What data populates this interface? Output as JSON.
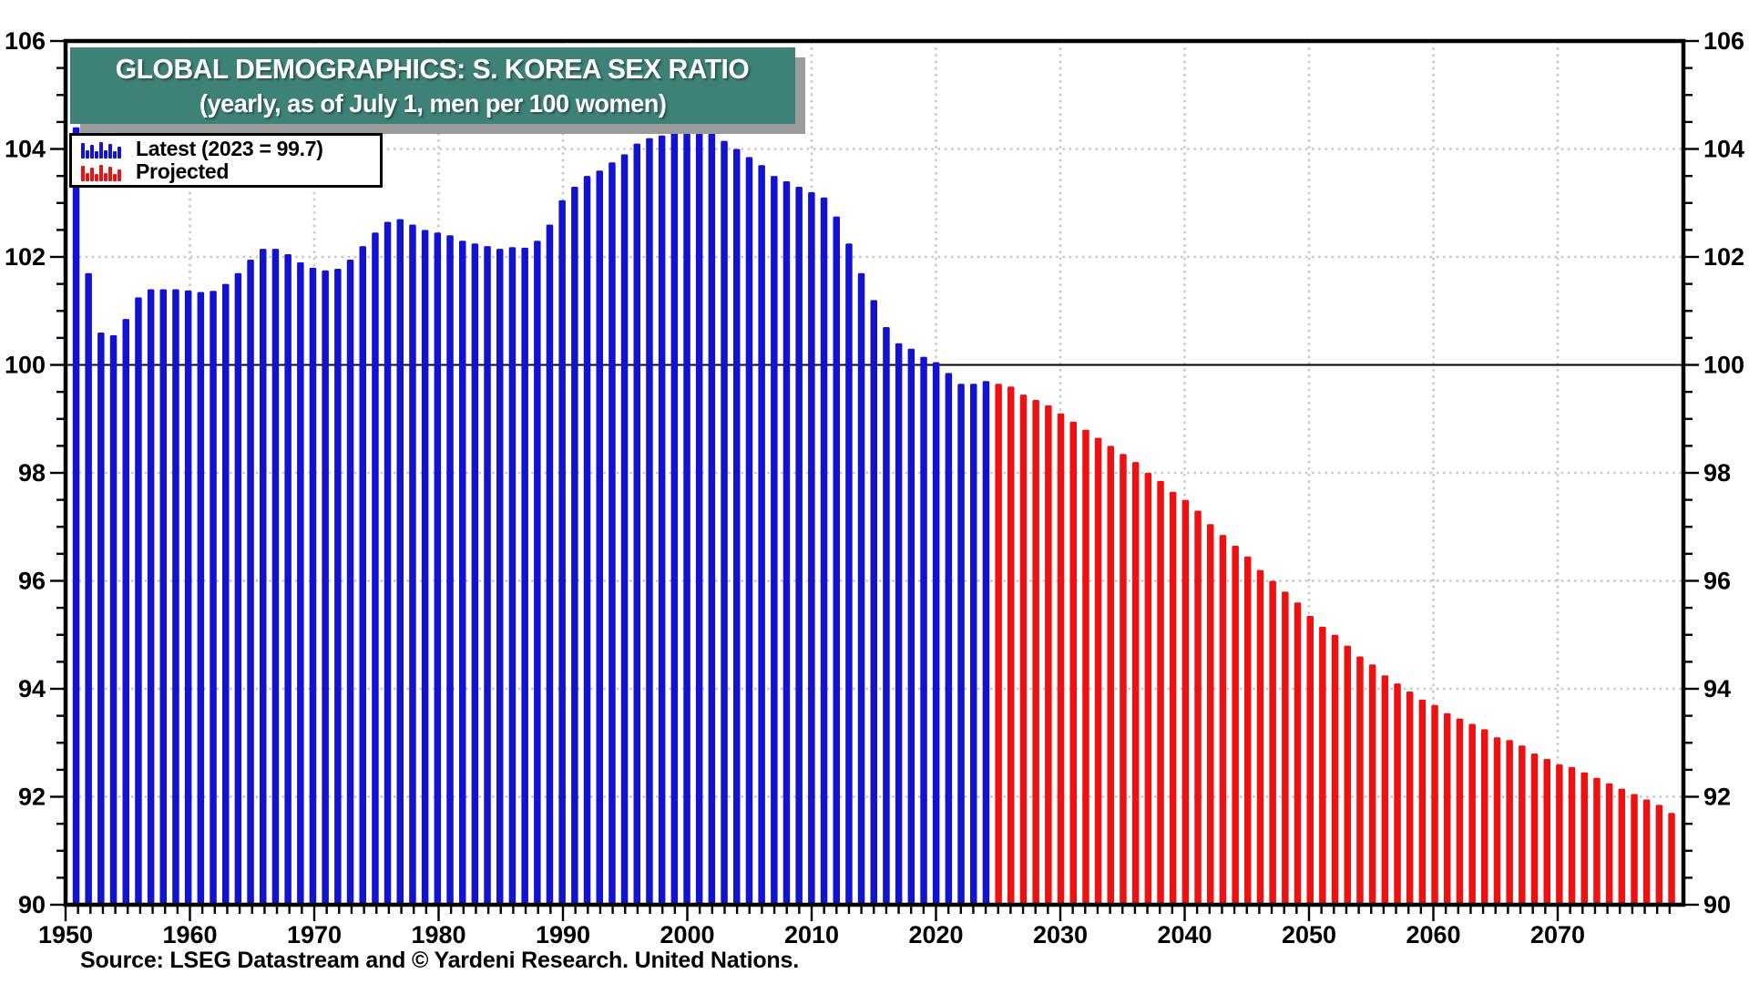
{
  "title": {
    "line1": "GLOBAL DEMOGRAPHICS: S. KOREA SEX RATIO",
    "line2": "(yearly, as of July 1, men per 100 women)"
  },
  "legend": {
    "items": [
      {
        "label": "Latest (2023 = 99.7)",
        "series": "latest"
      },
      {
        "label": "Projected",
        "series": "projected"
      }
    ]
  },
  "source": "Source: LSEG Datastream and © Yardeni Research. United Nations.",
  "colors": {
    "bar_blue": "#1212D0",
    "bar_red": "#EE1111",
    "title_bg": "#3E8176",
    "title_text": "#FFFFFF",
    "grid_dotted": "#C9C9C9",
    "axis": "#000000",
    "shadow": "#9B9B9B",
    "hundred_line": "#000000"
  },
  "axes": {
    "y_min": 90,
    "y_max": 106,
    "y_tick_labels": [
      "90",
      "92",
      "94",
      "96",
      "98",
      "100",
      "102",
      "104",
      "106"
    ],
    "y_tick_values": [
      90,
      92,
      94,
      96,
      98,
      100,
      102,
      104,
      106
    ],
    "y_gridlines_dotted": [
      92,
      94,
      96,
      98,
      102,
      104
    ],
    "y_solid_line": 100,
    "x_tick_labels": [
      "1950",
      "1960",
      "1970",
      "1980",
      "1990",
      "2000",
      "2010",
      "2020",
      "2030",
      "2040",
      "2050",
      "2060",
      "2070"
    ],
    "x_tick_years": [
      1950,
      1960,
      1970,
      1980,
      1990,
      2000,
      2010,
      2020,
      2030,
      2040,
      2050,
      2060,
      2070
    ],
    "x_gridline_years": [
      1960,
      1970,
      1980,
      1990,
      2000,
      2010,
      2020,
      2030,
      2040,
      2050,
      2060,
      2070
    ],
    "x_first_year": 1950,
    "x_last_year": 2078
  },
  "chart_data": {
    "type": "bar",
    "title": "GLOBAL DEMOGRAPHICS: S. KOREA SEX RATIO",
    "subtitle": "(yearly, as of July 1, men per 100 women)",
    "ylabel": "men per 100 women",
    "ylim": [
      90,
      106
    ],
    "grid": true,
    "legend_position": "top-left",
    "series": [
      {
        "name": "Latest (2023 = 99.7)",
        "color_key": "bar_blue",
        "start_year": 1950,
        "values": [
          104.4,
          101.7,
          100.6,
          100.55,
          100.85,
          101.25,
          101.4,
          101.4,
          101.4,
          101.38,
          101.35,
          101.37,
          101.5,
          101.7,
          101.95,
          102.15,
          102.15,
          102.05,
          101.9,
          101.8,
          101.75,
          101.78,
          101.95,
          102.2,
          102.45,
          102.65,
          102.7,
          102.6,
          102.5,
          102.45,
          102.4,
          102.3,
          102.25,
          102.2,
          102.15,
          102.18,
          102.17,
          102.3,
          102.6,
          103.05,
          103.3,
          103.5,
          103.6,
          103.75,
          103.9,
          104.1,
          104.2,
          104.25,
          104.3,
          104.35,
          104.4,
          104.35,
          104.15,
          104.0,
          103.85,
          103.7,
          103.5,
          103.4,
          103.3,
          103.2,
          103.1,
          102.75,
          102.25,
          101.7,
          101.2,
          100.7,
          100.4,
          100.3,
          100.15,
          100.05,
          99.85,
          99.65,
          99.65,
          99.7
        ]
      },
      {
        "name": "Projected",
        "color_key": "bar_red",
        "start_year": 2024,
        "values": [
          99.65,
          99.6,
          99.45,
          99.35,
          99.25,
          99.1,
          98.95,
          98.8,
          98.65,
          98.5,
          98.35,
          98.2,
          98.0,
          97.85,
          97.65,
          97.5,
          97.3,
          97.05,
          96.85,
          96.65,
          96.45,
          96.2,
          96.0,
          95.8,
          95.6,
          95.35,
          95.15,
          95.0,
          94.8,
          94.6,
          94.45,
          94.25,
          94.1,
          93.95,
          93.8,
          93.7,
          93.55,
          93.45,
          93.35,
          93.25,
          93.1,
          93.05,
          92.95,
          92.8,
          92.7,
          92.6,
          92.55,
          92.45,
          92.35,
          92.25,
          92.15,
          92.05,
          91.95,
          91.85,
          91.7
        ]
      }
    ]
  },
  "legend_swatch_bar_heights": [
    17,
    9,
    15,
    8,
    18,
    9,
    16,
    8,
    13
  ]
}
